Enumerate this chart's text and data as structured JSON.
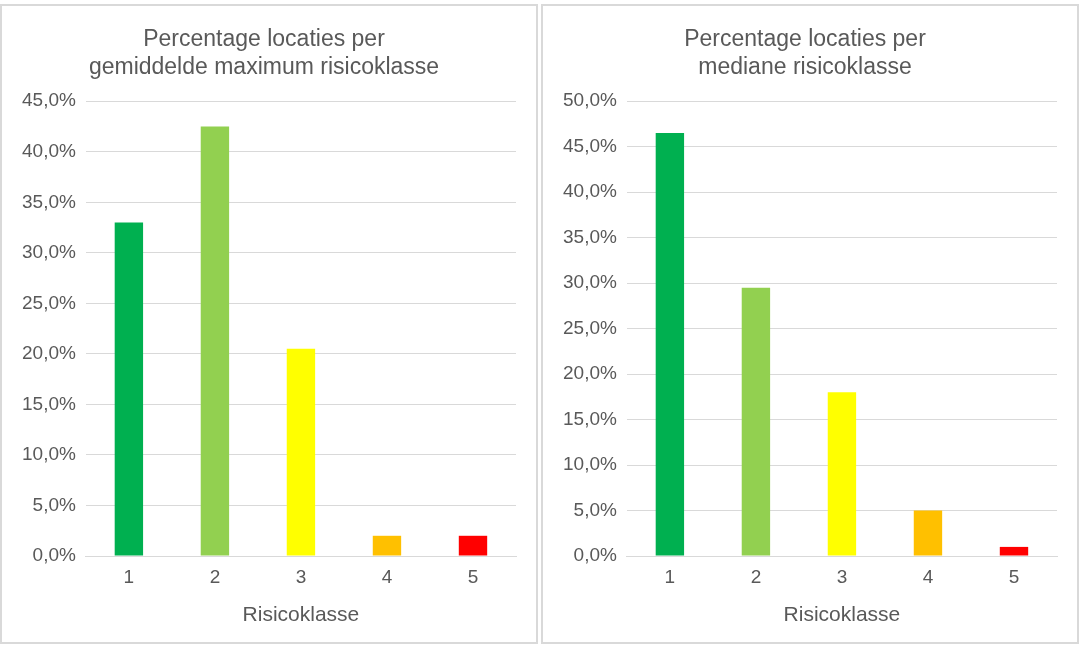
{
  "chart_data": [
    {
      "type": "bar",
      "title": "Percentage locaties per\ngemiddelde maximum risicoklasse",
      "xlabel": "Risicoklasse",
      "categories": [
        "1",
        "2",
        "3",
        "4",
        "5"
      ],
      "values": [
        33.0,
        42.5,
        20.5,
        2.0,
        2.0
      ],
      "colors": [
        "#00b050",
        "#92d050",
        "#ffff00",
        "#ffc000",
        "#ff0000"
      ],
      "ylim": [
        0,
        45
      ],
      "yticks": [
        {
          "value": 0,
          "label": "0,0%"
        },
        {
          "value": 5,
          "label": "5,0%"
        },
        {
          "value": 10,
          "label": "10,0%"
        },
        {
          "value": 15,
          "label": "15,0%"
        },
        {
          "value": 20,
          "label": "20,0%"
        },
        {
          "value": 25,
          "label": "25,0%"
        },
        {
          "value": 30,
          "label": "30,0%"
        },
        {
          "value": 35,
          "label": "35,0%"
        },
        {
          "value": 40,
          "label": "40,0%"
        },
        {
          "value": 45,
          "label": "45,0%"
        }
      ],
      "grid": "y"
    },
    {
      "type": "bar",
      "title": "Percentage locaties per\nmediane risicoklasse",
      "xlabel": "Risicoklasse",
      "categories": [
        "1",
        "2",
        "3",
        "4",
        "5"
      ],
      "values": [
        46.5,
        29.5,
        18.0,
        5.0,
        1.0
      ],
      "colors": [
        "#00b050",
        "#92d050",
        "#ffff00",
        "#ffc000",
        "#ff0000"
      ],
      "ylim": [
        0,
        50
      ],
      "yticks": [
        {
          "value": 0,
          "label": "0,0%"
        },
        {
          "value": 5,
          "label": "5,0%"
        },
        {
          "value": 10,
          "label": "10,0%"
        },
        {
          "value": 15,
          "label": "15,0%"
        },
        {
          "value": 20,
          "label": "20,0%"
        },
        {
          "value": 25,
          "label": "25,0%"
        },
        {
          "value": 30,
          "label": "30,0%"
        },
        {
          "value": 35,
          "label": "35,0%"
        },
        {
          "value": 40,
          "label": "40,0%"
        },
        {
          "value": 45,
          "label": "45,0%"
        },
        {
          "value": 50,
          "label": "50,0%"
        }
      ],
      "grid": "y"
    }
  ]
}
